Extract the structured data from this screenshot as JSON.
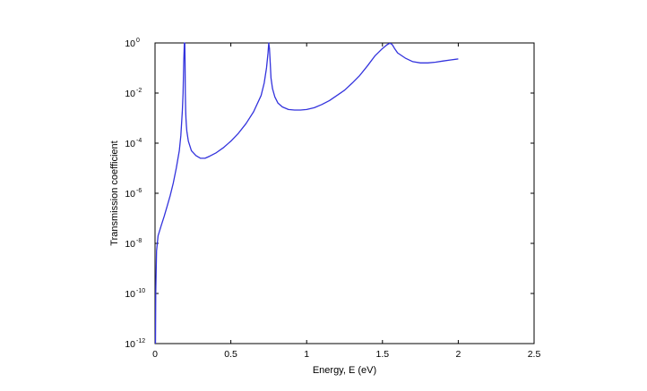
{
  "chart_data": {
    "type": "line",
    "xlabel": "Energy, E (eV)",
    "ylabel": "Transmission coefficient",
    "xlim": [
      0,
      2.5
    ],
    "ylim": [
      1e-12,
      1
    ],
    "yscale": "log",
    "grid": false,
    "legend": "none",
    "xticks": [
      {
        "value": 0,
        "label": "0"
      },
      {
        "value": 0.5,
        "label": "0.5"
      },
      {
        "value": 1,
        "label": "1"
      },
      {
        "value": 1.5,
        "label": "1.5"
      },
      {
        "value": 2,
        "label": "2"
      },
      {
        "value": 2.5,
        "label": "2.5"
      }
    ],
    "yticks": [
      {
        "value": 1,
        "base": "10",
        "exp": "0"
      },
      {
        "value": 0.01,
        "base": "10",
        "exp": "-2"
      },
      {
        "value": 0.0001,
        "base": "10",
        "exp": "-4"
      },
      {
        "value": 1e-06,
        "base": "10",
        "exp": "-6"
      },
      {
        "value": 1e-08,
        "base": "10",
        "exp": "-8"
      },
      {
        "value": 1e-10,
        "base": "10",
        "exp": "-10"
      },
      {
        "value": 1e-12,
        "base": "10",
        "exp": "-12"
      }
    ],
    "series": [
      {
        "color": "#3333dd",
        "x": [
          0.003,
          0.005,
          0.01,
          0.02,
          0.04,
          0.06,
          0.08,
          0.1,
          0.12,
          0.14,
          0.16,
          0.17,
          0.18,
          0.185,
          0.19,
          0.193,
          0.196,
          0.198,
          0.2,
          0.202,
          0.204,
          0.207,
          0.21,
          0.22,
          0.24,
          0.27,
          0.3,
          0.33,
          0.36,
          0.4,
          0.45,
          0.5,
          0.55,
          0.6,
          0.65,
          0.7,
          0.72,
          0.735,
          0.745,
          0.75,
          0.755,
          0.76,
          0.765,
          0.775,
          0.79,
          0.81,
          0.84,
          0.88,
          0.92,
          0.96,
          1.0,
          1.05,
          1.1,
          1.15,
          1.2,
          1.25,
          1.3,
          1.35,
          1.4,
          1.45,
          1.5,
          1.53,
          1.545,
          1.555,
          1.565,
          1.58,
          1.6,
          1.65,
          1.7,
          1.75,
          1.8,
          1.85,
          1.9,
          1.95,
          2.0
        ],
        "y": [
          1e-12,
          1e-10,
          5e-09,
          2e-08,
          5e-08,
          1.2e-07,
          3e-07,
          8e-07,
          2.5e-06,
          1e-05,
          5e-05,
          0.0002,
          0.002,
          0.01,
          0.2,
          1,
          1,
          0.2,
          0.01,
          0.002,
          0.001,
          0.0005,
          0.0003,
          0.00012,
          5e-05,
          3.2e-05,
          2.5e-05,
          2.5e-05,
          3e-05,
          4e-05,
          6.5e-05,
          0.00012,
          0.00025,
          0.0006,
          0.0018,
          0.008,
          0.025,
          0.1,
          0.4,
          1,
          0.6,
          0.15,
          0.04,
          0.015,
          0.007,
          0.004,
          0.0028,
          0.0022,
          0.0021,
          0.0021,
          0.0022,
          0.0026,
          0.0035,
          0.005,
          0.008,
          0.013,
          0.025,
          0.05,
          0.12,
          0.3,
          0.6,
          0.85,
          0.95,
          0.95,
          0.85,
          0.6,
          0.4,
          0.25,
          0.18,
          0.16,
          0.16,
          0.17,
          0.19,
          0.21,
          0.23
        ]
      }
    ]
  }
}
